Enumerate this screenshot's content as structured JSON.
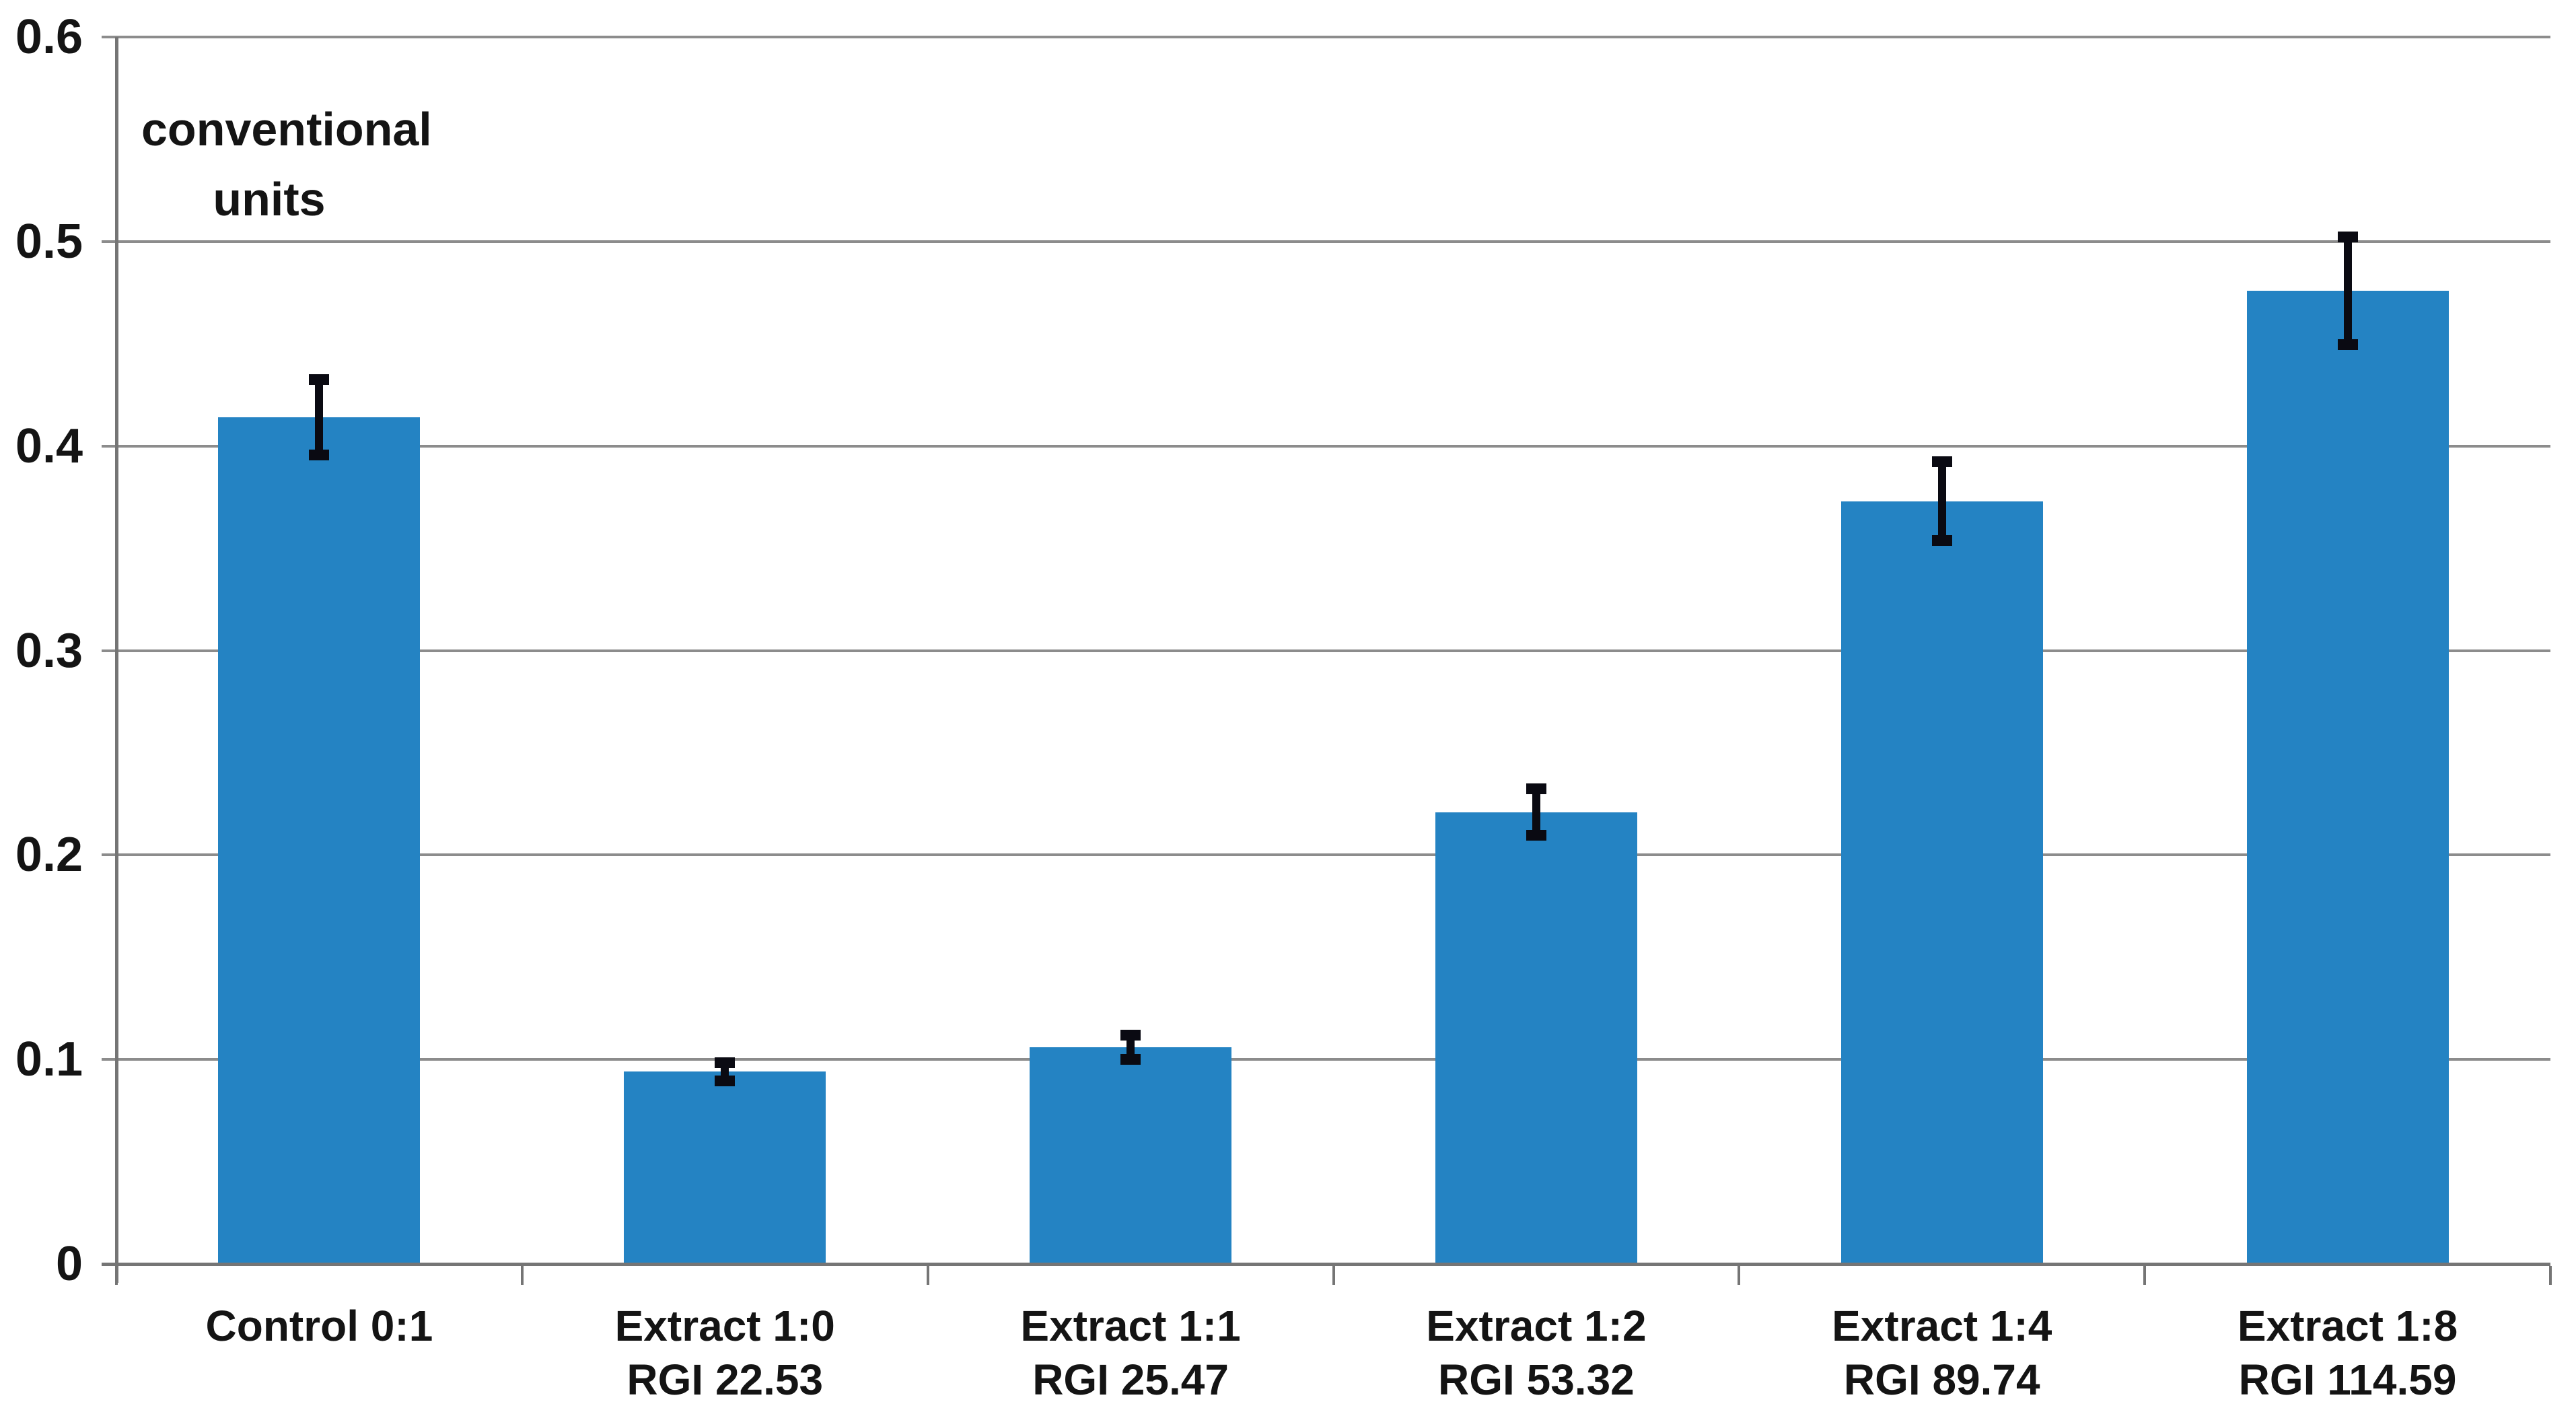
{
  "chart_data": {
    "type": "bar",
    "y_units_label": [
      "conventional",
      "units"
    ],
    "y_axis": {
      "min": 0,
      "max": 0.6,
      "step": 0.1,
      "tick_labels": [
        "0",
        "0.1",
        "0.2",
        "0.3",
        "0.4",
        "0.5",
        "0.6"
      ]
    },
    "categories": [
      {
        "label": "Control 0:1",
        "sublabel": "",
        "value": 0.414,
        "error": 0.017
      },
      {
        "label": "Extract 1:0",
        "sublabel": "RGI 22.53",
        "value": 0.094,
        "error": 0.003
      },
      {
        "label": "Extract 1:1",
        "sublabel": "RGI 25.47",
        "value": 0.106,
        "error": 0.0045
      },
      {
        "label": "Extract 1:2",
        "sublabel": "RGI 53.32",
        "value": 0.221,
        "error": 0.01
      },
      {
        "label": "Extract 1:4",
        "sublabel": "RGI 89.74",
        "value": 0.373,
        "error": 0.018
      },
      {
        "label": "Extract 1:8",
        "sublabel": "RGI 114.59",
        "value": 0.476,
        "error": 0.025
      }
    ],
    "grid": true,
    "legend": "none",
    "colors": {
      "bar": "#2483C3",
      "error_bar": "#0A0A12",
      "gridline": "#8C8C8C",
      "axis": "#757575",
      "text": "#141414",
      "background": "#FFFFFF"
    }
  }
}
